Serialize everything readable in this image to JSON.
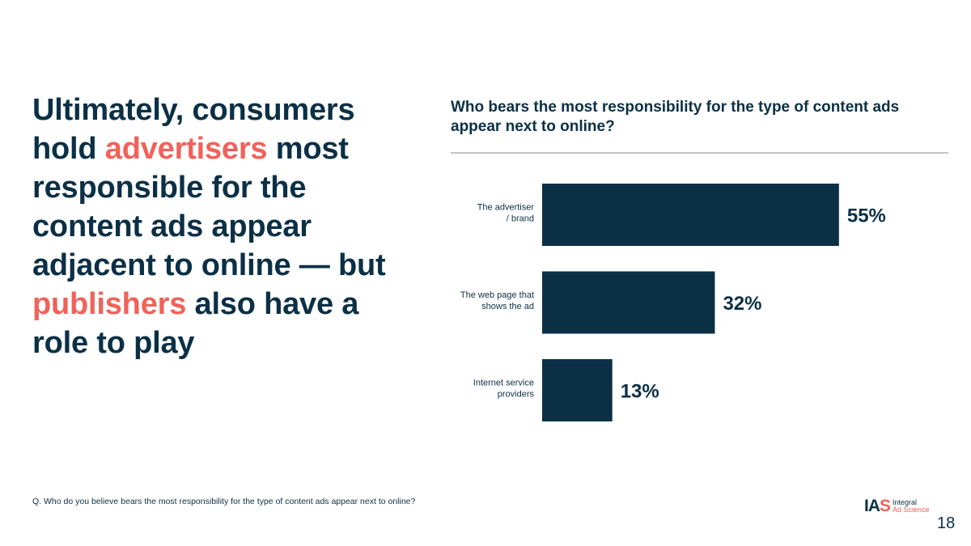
{
  "headline": {
    "parts": [
      {
        "text": "Ultimately, consumers hold ",
        "highlight": false
      },
      {
        "text": "advertisers",
        "highlight": true
      },
      {
        "text": " most responsible for the content ads appear adjacent to online — but ",
        "highlight": false
      },
      {
        "text": "publishers",
        "highlight": true
      },
      {
        "text": " also have a role to play",
        "highlight": false
      }
    ],
    "color": "#0b3046",
    "highlight_color": "#f0625a"
  },
  "chart_data": {
    "type": "bar",
    "orientation": "horizontal",
    "title": "Who bears the most responsibility for the type of content ads appear next to online?",
    "categories": [
      [
        "The advertiser",
        "/ brand"
      ],
      [
        "The web page that",
        "shows the ad"
      ],
      [
        "Internet service",
        "providers"
      ]
    ],
    "values": [
      55,
      32,
      13
    ],
    "data_labels": [
      "55%",
      "32%",
      "13%"
    ],
    "xlim": [
      0,
      100
    ],
    "grid": false,
    "bar_color": "#0b3046"
  },
  "footnote": "Q. Who do you believe bears the most responsibility for the type of content ads appear next to online?",
  "logo": {
    "mark_main": "IA",
    "mark_accent": "S",
    "line1": "Integral",
    "line2": "Ad Science"
  },
  "page_number": "18"
}
